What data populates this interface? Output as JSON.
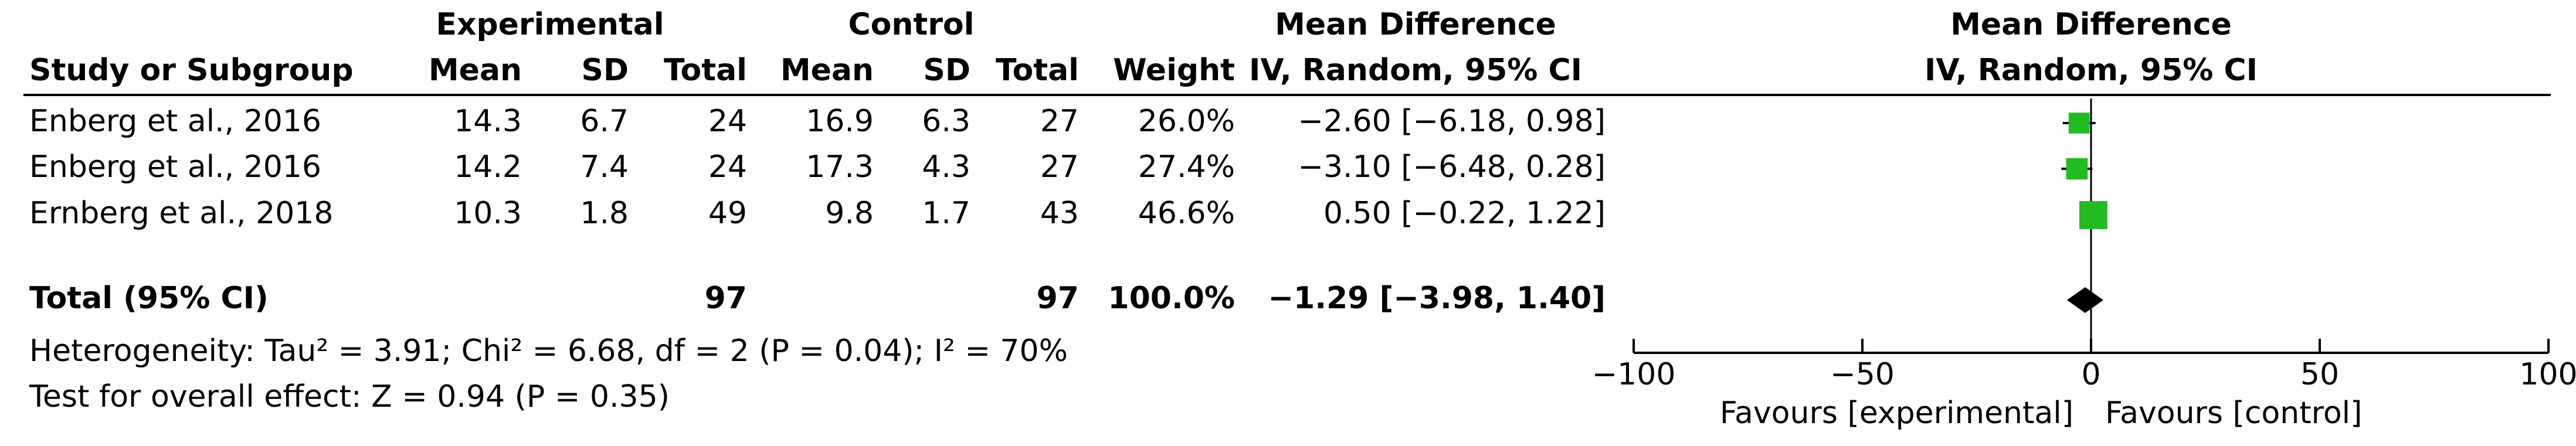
{
  "table": {
    "group_headers": {
      "experimental": "Experimental",
      "control": "Control",
      "effect": "Mean Difference"
    },
    "columns": [
      "Study or Subgroup",
      "Mean",
      "SD",
      "Total",
      "Mean",
      "SD",
      "Total",
      "Weight",
      "IV, Random, 95% CI"
    ],
    "rows": [
      [
        "Enberg et al., 2016",
        "14.3",
        "6.7",
        "24",
        "16.9",
        "6.3",
        "27",
        "26.0%",
        "−2.60 [−6.18, 0.98]"
      ],
      [
        "Enberg et al., 2016",
        "14.2",
        "7.4",
        "24",
        "17.3",
        "4.3",
        "27",
        "27.4%",
        "−3.10 [−6.48, 0.28]"
      ],
      [
        "Ernberg et al., 2018",
        "10.3",
        "1.8",
        "49",
        "9.8",
        "1.7",
        "43",
        "46.6%",
        "0.50 [−0.22, 1.22]"
      ]
    ],
    "total": {
      "label": "Total (95% CI)",
      "experimental_total": "97",
      "control_total": "97",
      "weight": "100.0%",
      "ci": "−1.29 [−3.98, 1.40]"
    },
    "heterogeneity": "Heterogeneity: Tau² = 3.91; Chi² = 6.68, df = 2 (P = 0.04); I² = 70%",
    "overall_effect": "Test for overall effect: Z = 0.94 (P = 0.35)"
  },
  "chart_data": {
    "type": "forest",
    "title": "Mean Difference",
    "subtitle": "IV, Random, 95% CI",
    "studies": {
      "md": [
        -2.6,
        -3.1,
        0.5
      ],
      "lower": [
        -6.18,
        -6.48,
        -0.22
      ],
      "upper": [
        0.98,
        0.28,
        1.22
      ],
      "weights": [
        26.0,
        27.4,
        46.6
      ]
    },
    "total": {
      "md": -1.29,
      "lower": -3.98,
      "upper": 1.4
    },
    "xlim": [
      -100,
      100
    ],
    "xticks": [
      {
        "value": -100,
        "label": "−100"
      },
      {
        "value": -50,
        "label": "−50"
      },
      0,
      50,
      100
    ],
    "color": "#22bb22",
    "xlabel_left": "Favours [experimental]",
    "xlabel_right": "Favours [control]"
  }
}
